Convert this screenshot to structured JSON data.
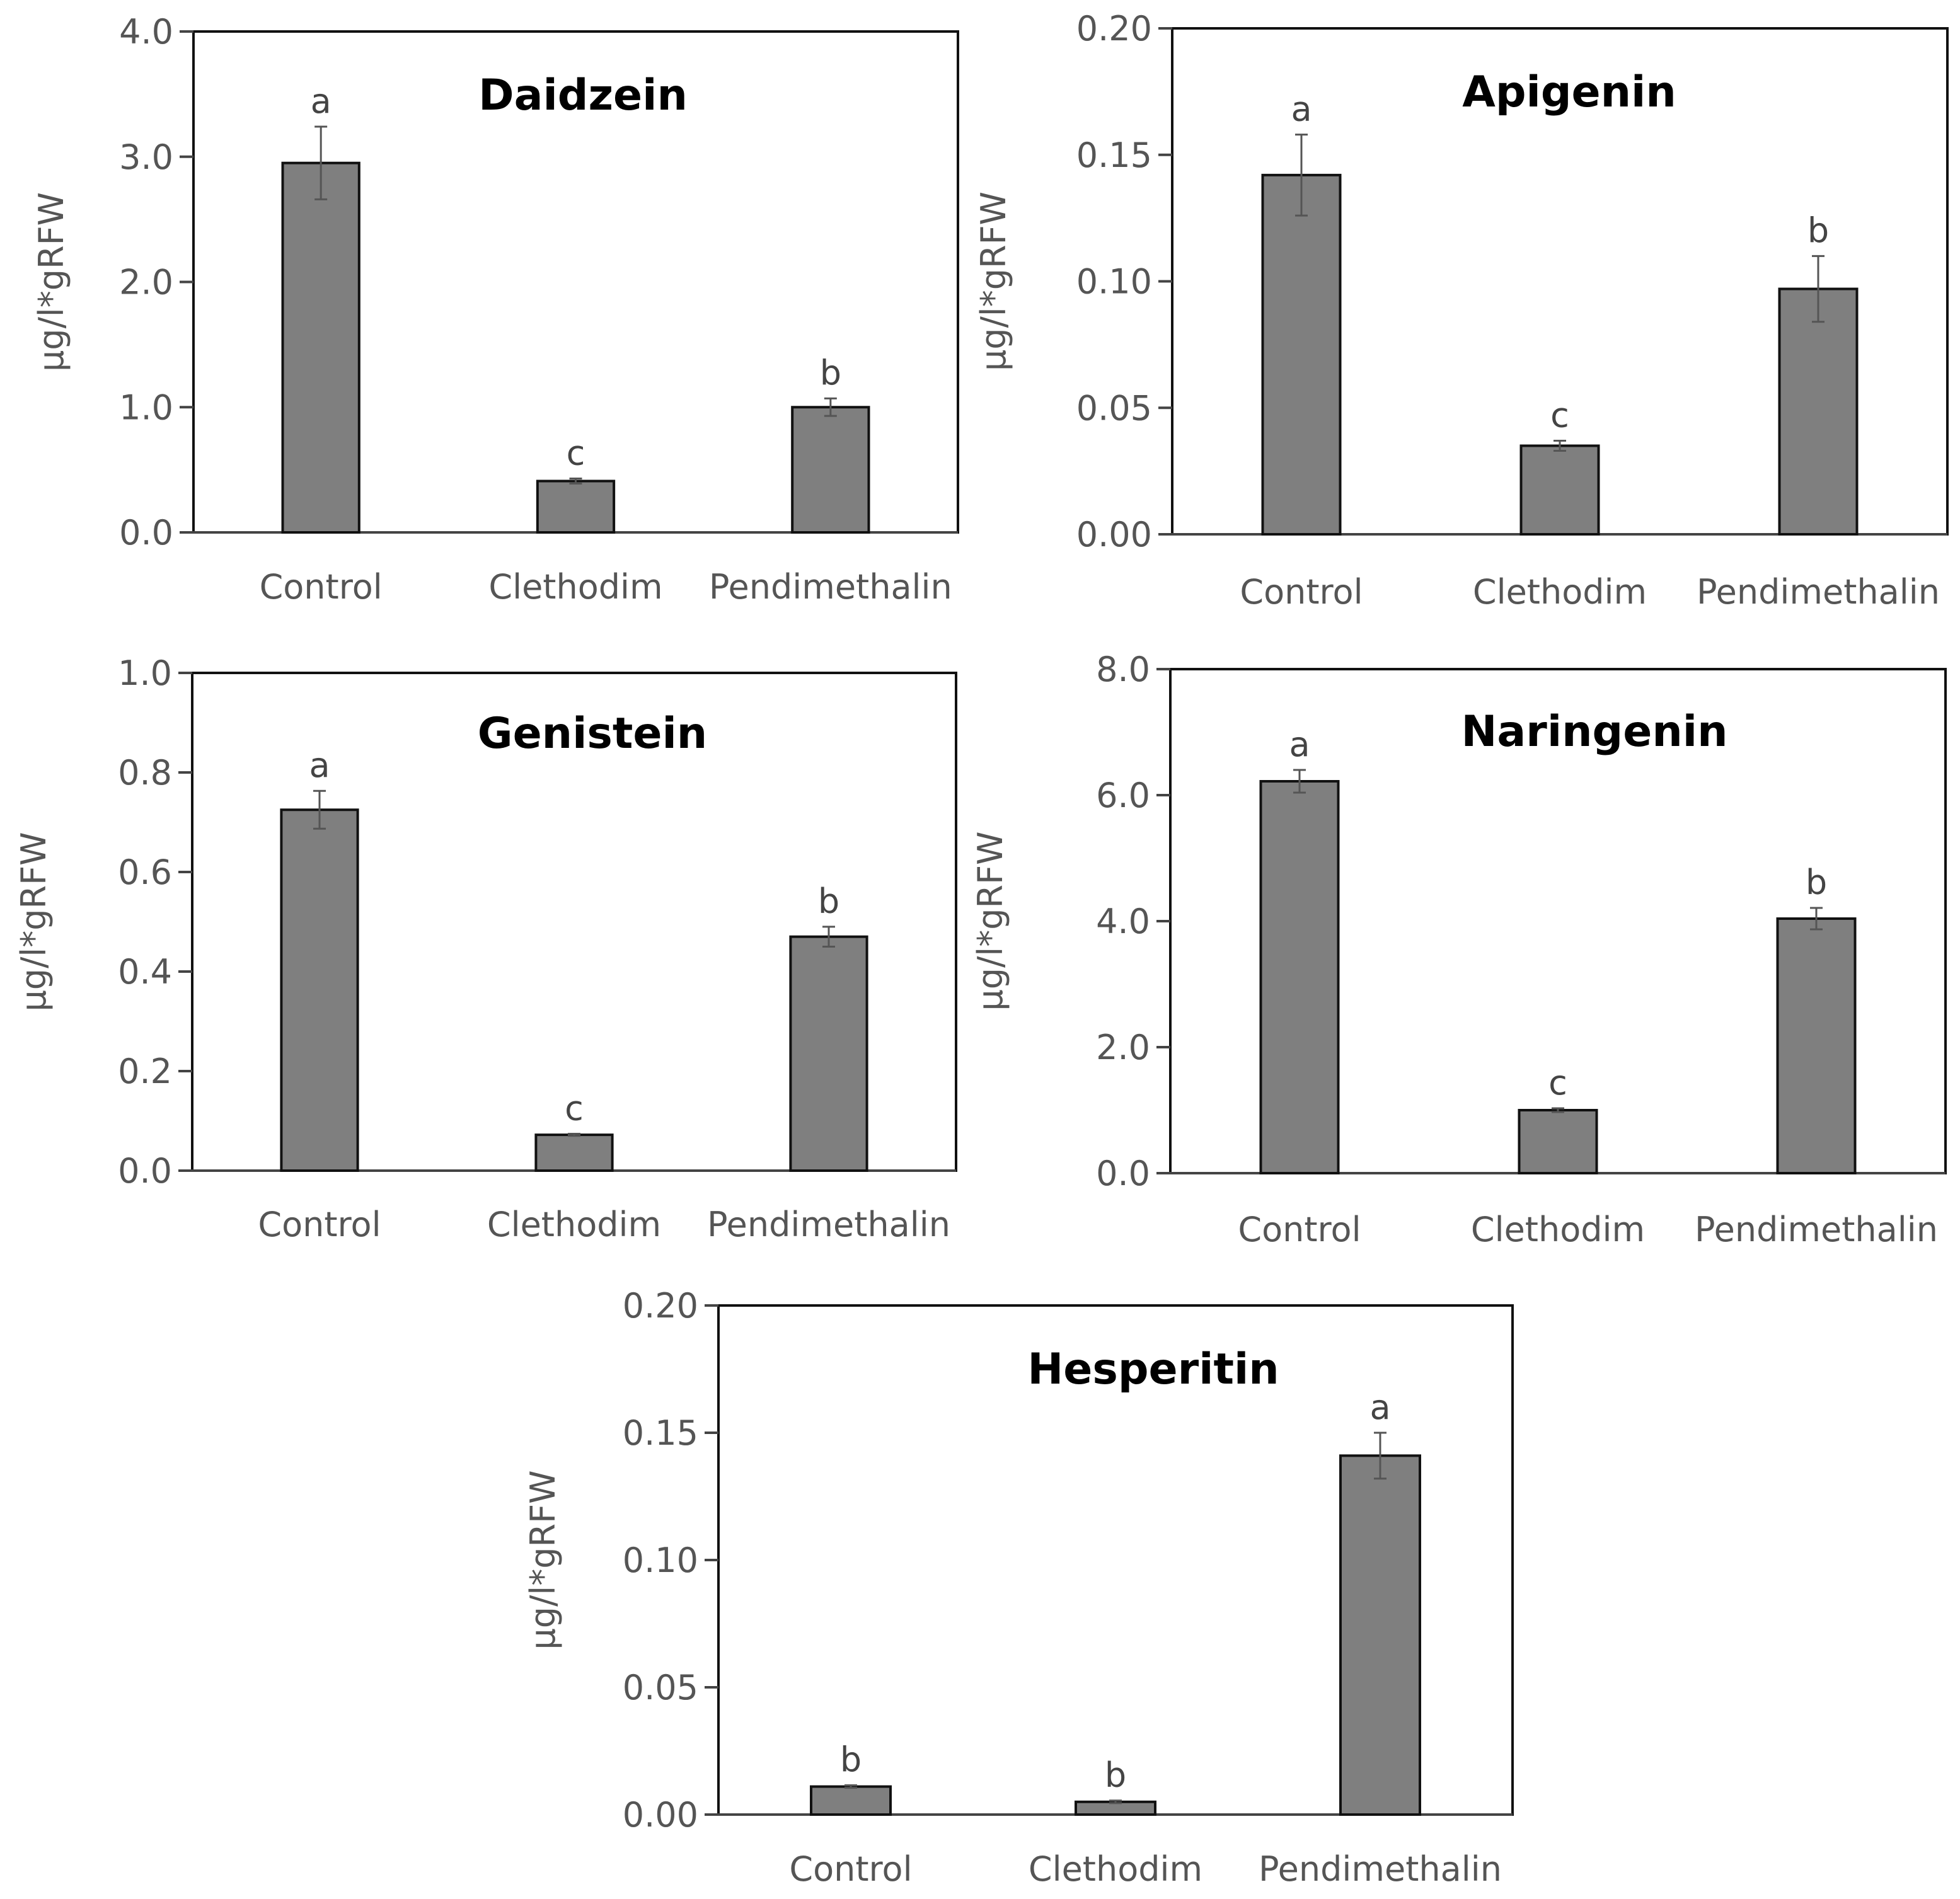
{
  "colors": {
    "bar": "#7f7f7f",
    "bar_outline": "#111111",
    "axis_text": "#555555",
    "title": "#000000"
  },
  "chart_data": [
    {
      "type": "bar",
      "title": "Daidzein",
      "ylabel": "µg/l*gRFW",
      "xlabel": "",
      "categories": [
        "Control",
        "Clethodim",
        "Pendimethalin"
      ],
      "values": [
        2.95,
        0.41,
        1.0
      ],
      "errors": [
        0.29,
        0.02,
        0.07
      ],
      "letters": [
        "a",
        "c",
        "b"
      ],
      "ylim": [
        0,
        4.0
      ],
      "yticks": [
        "0.0",
        "1.0",
        "2.0",
        "3.0",
        "4.0"
      ]
    },
    {
      "type": "bar",
      "title": "Apigenin",
      "ylabel": "µg/l*gRFW",
      "xlabel": "",
      "categories": [
        "Control",
        "Clethodim",
        "Pendimethalin"
      ],
      "values": [
        0.142,
        0.035,
        0.097
      ],
      "errors": [
        0.016,
        0.002,
        0.013
      ],
      "letters": [
        "a",
        "c",
        "b"
      ],
      "ylim": [
        0,
        0.2
      ],
      "yticks": [
        "0.00",
        "0.05",
        "0.10",
        "0.15",
        "0.20"
      ]
    },
    {
      "type": "bar",
      "title": "Genistein",
      "ylabel": "µg/l*gRFW",
      "xlabel": "",
      "categories": [
        "Control",
        "Clethodim",
        "Pendimethalin"
      ],
      "values": [
        0.725,
        0.072,
        0.47
      ],
      "errors": [
        0.038,
        0.002,
        0.02
      ],
      "letters": [
        "a",
        "c",
        "b"
      ],
      "ylim": [
        0,
        1.0
      ],
      "yticks": [
        "0.0",
        "0.2",
        "0.4",
        "0.6",
        "0.8",
        "1.0"
      ]
    },
    {
      "type": "bar",
      "title": "Naringenin",
      "ylabel": "µg/l*gRFW",
      "xlabel": "",
      "categories": [
        "Control",
        "Clethodim",
        "Pendimethalin"
      ],
      "values": [
        6.22,
        1.0,
        4.04
      ],
      "errors": [
        0.18,
        0.03,
        0.17
      ],
      "letters": [
        "a",
        "c",
        "b"
      ],
      "ylim": [
        0,
        8.0
      ],
      "yticks": [
        "0.0",
        "2.0",
        "4.0",
        "6.0",
        "8.0"
      ]
    },
    {
      "type": "bar",
      "title": "Hesperitin",
      "ylabel": "µg/l*gRFW",
      "xlabel": "",
      "categories": [
        "Control",
        "Clethodim",
        "Pendimethalin"
      ],
      "values": [
        0.011,
        0.005,
        0.141
      ],
      "errors": [
        0.0005,
        0.0005,
        0.009
      ],
      "letters": [
        "b",
        "b",
        "a"
      ],
      "ylim": [
        0,
        0.2
      ],
      "yticks": [
        "0.00",
        "0.05",
        "0.10",
        "0.15",
        "0.20"
      ]
    }
  ]
}
